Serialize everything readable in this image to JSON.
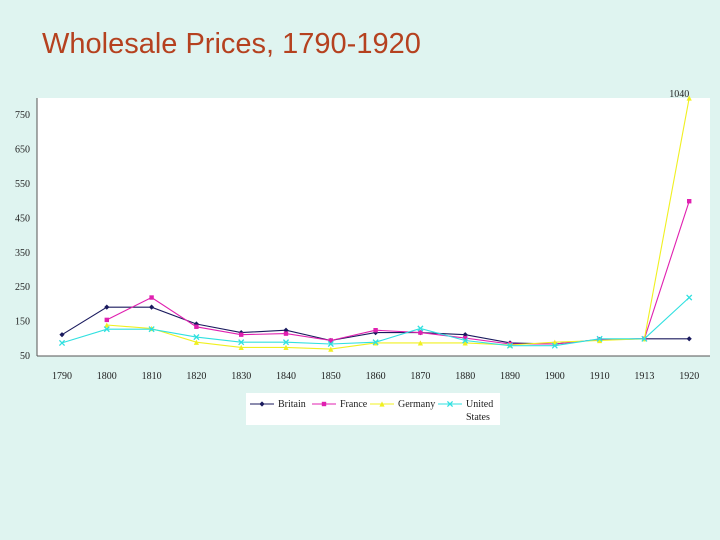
{
  "slide": {
    "title": "Wholesale Prices, 1790-1920"
  },
  "chart_data": {
    "type": "line",
    "title": "Wholesale Prices, 1790-1920",
    "xlabel": "",
    "ylabel": "",
    "categories": [
      "1790",
      "1800",
      "1810",
      "1820",
      "1830",
      "1840",
      "1850",
      "1860",
      "1870",
      "1880",
      "1890",
      "1900",
      "1910",
      "1913",
      "1920"
    ],
    "yticks": [
      50,
      150,
      250,
      350,
      450,
      550,
      650,
      750
    ],
    "ylim": [
      50,
      800
    ],
    "annotation": {
      "text": "1040",
      "category": "1920"
    },
    "legend_position": "bottom",
    "series": [
      {
        "name": "Britain",
        "color": "#1a1a5e",
        "marker": "diamond",
        "values": [
          112,
          192,
          192,
          143,
          118,
          125,
          95,
          118,
          118,
          112,
          88,
          85,
          98,
          100,
          100
        ]
      },
      {
        "name": "France",
        "color": "#e020b0",
        "marker": "square",
        "values": [
          null,
          155,
          220,
          135,
          112,
          115,
          95,
          125,
          118,
          102,
          85,
          85,
          98,
          100,
          500
        ]
      },
      {
        "name": "Germany",
        "color": "#f0f020",
        "marker": "triangle",
        "values": [
          null,
          140,
          130,
          90,
          75,
          75,
          70,
          88,
          88,
          88,
          82,
          90,
          95,
          100,
          800
        ]
      },
      {
        "name": "United States",
        "color": "#30e0e0",
        "marker": "cross",
        "values": [
          88,
          128,
          128,
          105,
          90,
          90,
          85,
          90,
          130,
          95,
          80,
          80,
          100,
          100,
          220
        ]
      }
    ]
  }
}
